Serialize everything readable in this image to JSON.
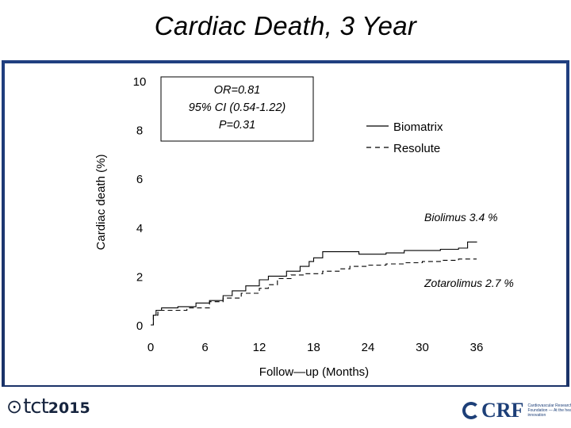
{
  "slide_title": "Cardiac Death, 3 Year",
  "chart_data": {
    "type": "line",
    "ylabel": "Cardiac death (%)",
    "xlabel": "Follow—up (Months)",
    "x_ticks": [
      0,
      6,
      12,
      18,
      24,
      30,
      36
    ],
    "y_ticks": [
      0,
      2,
      4,
      6,
      8,
      10
    ],
    "xlim": [
      0,
      36
    ],
    "ylim": [
      0,
      10
    ],
    "series": [
      {
        "name": "Biomatrix",
        "style": "solid",
        "points": [
          [
            0,
            0
          ],
          [
            0.3,
            0.4
          ],
          [
            0.6,
            0.6
          ],
          [
            1.2,
            0.7
          ],
          [
            3,
            0.75
          ],
          [
            5,
            0.9
          ],
          [
            6.5,
            1.0
          ],
          [
            8,
            1.2
          ],
          [
            9,
            1.4
          ],
          [
            10.5,
            1.6
          ],
          [
            12,
            1.85
          ],
          [
            13,
            2.0
          ],
          [
            15,
            2.2
          ],
          [
            16.5,
            2.4
          ],
          [
            17.5,
            2.6
          ],
          [
            18,
            2.75
          ],
          [
            19,
            3.0
          ],
          [
            22,
            3.0
          ],
          [
            23,
            2.9
          ],
          [
            26,
            2.95
          ],
          [
            28,
            3.05
          ],
          [
            30,
            3.05
          ],
          [
            32,
            3.1
          ],
          [
            34,
            3.15
          ],
          [
            35,
            3.4
          ],
          [
            36,
            3.42
          ]
        ]
      },
      {
        "name": "Resolute",
        "style": "dashed",
        "points": [
          [
            0,
            0
          ],
          [
            0.3,
            0.4
          ],
          [
            0.8,
            0.6
          ],
          [
            2,
            0.6
          ],
          [
            4,
            0.7
          ],
          [
            6.5,
            0.95
          ],
          [
            8,
            1.1
          ],
          [
            10,
            1.3
          ],
          [
            12,
            1.5
          ],
          [
            13,
            1.65
          ],
          [
            14,
            1.9
          ],
          [
            15.5,
            2.05
          ],
          [
            17,
            2.1
          ],
          [
            19,
            2.2
          ],
          [
            21,
            2.3
          ],
          [
            22,
            2.4
          ],
          [
            24,
            2.45
          ],
          [
            26,
            2.5
          ],
          [
            28,
            2.55
          ],
          [
            30,
            2.6
          ],
          [
            32,
            2.65
          ],
          [
            34,
            2.7
          ],
          [
            36,
            2.7
          ]
        ]
      }
    ],
    "annotations": {
      "stats_box": [
        "OR=0.81",
        "95% CI (0.54-1.22)",
        "P=0.31"
      ],
      "label_top": "Biolimus  3.4 %",
      "label_bottom": "Zotarolimus  2.7 %"
    }
  },
  "footer": {
    "left_logo_text": "tct",
    "left_logo_year": "2015",
    "right_logo_text": "CRF",
    "right_logo_sub": "Cardiovascular Research Foundation — At the heart of innovation"
  },
  "colors": {
    "panel_bg": "#1e3a78",
    "chart_bg": "#ffffff",
    "text": "#000000"
  }
}
